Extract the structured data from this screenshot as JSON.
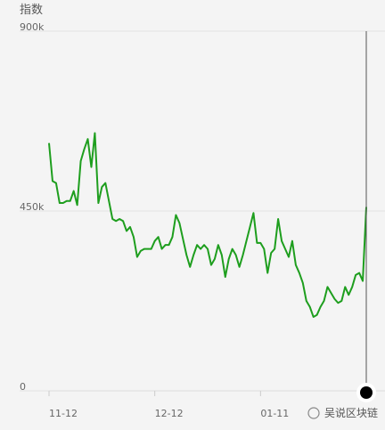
{
  "chart_data": {
    "type": "line",
    "y_label": "指数",
    "categories": [
      "11-12",
      null,
      null,
      null,
      null,
      null,
      null,
      null,
      null,
      null,
      null,
      null,
      null,
      null,
      null,
      null,
      null,
      null,
      null,
      null,
      null,
      null,
      null,
      null,
      null,
      null,
      null,
      null,
      null,
      null,
      "12-12",
      null,
      null,
      null,
      null,
      null,
      null,
      null,
      null,
      null,
      null,
      null,
      null,
      null,
      null,
      null,
      null,
      null,
      null,
      null,
      null,
      null,
      null,
      null,
      null,
      null,
      null,
      null,
      null,
      null,
      "01-11",
      null,
      null,
      null,
      null,
      null,
      null,
      null,
      null,
      null,
      null,
      null,
      null,
      null,
      null,
      null,
      null,
      null,
      null,
      null,
      null,
      null,
      null,
      null,
      null,
      null,
      null,
      null,
      null,
      null,
      null
    ],
    "series": [
      {
        "name": "指数",
        "color": "#1e9e1e",
        "values": [
          620000,
          525000,
          520000,
          470000,
          470000,
          475000,
          475000,
          500000,
          465000,
          575000,
          605000,
          630000,
          560000,
          645000,
          470000,
          510000,
          520000,
          475000,
          430000,
          425000,
          430000,
          425000,
          400000,
          410000,
          385000,
          335000,
          350000,
          355000,
          355000,
          355000,
          375000,
          385000,
          355000,
          365000,
          365000,
          385000,
          440000,
          420000,
          380000,
          340000,
          310000,
          340000,
          365000,
          355000,
          365000,
          355000,
          315000,
          330000,
          365000,
          340000,
          285000,
          330000,
          355000,
          340000,
          310000,
          340000,
          375000,
          410000,
          445000,
          370000,
          370000,
          355000,
          295000,
          345000,
          355000,
          430000,
          375000,
          355000,
          335000,
          375000,
          315000,
          295000,
          270000,
          225000,
          210000,
          185000,
          190000,
          210000,
          225000,
          260000,
          245000,
          230000,
          220000,
          225000,
          260000,
          240000,
          260000,
          290000,
          295000,
          275000,
          460000
        ]
      }
    ],
    "ylim": [
      0,
      900000
    ],
    "yticks": [
      0,
      {
        "value": 450000,
        "label": "450k"
      },
      {
        "value": 900000,
        "label": "900k"
      }
    ],
    "grid": true,
    "watermark": "吴说区块链"
  }
}
